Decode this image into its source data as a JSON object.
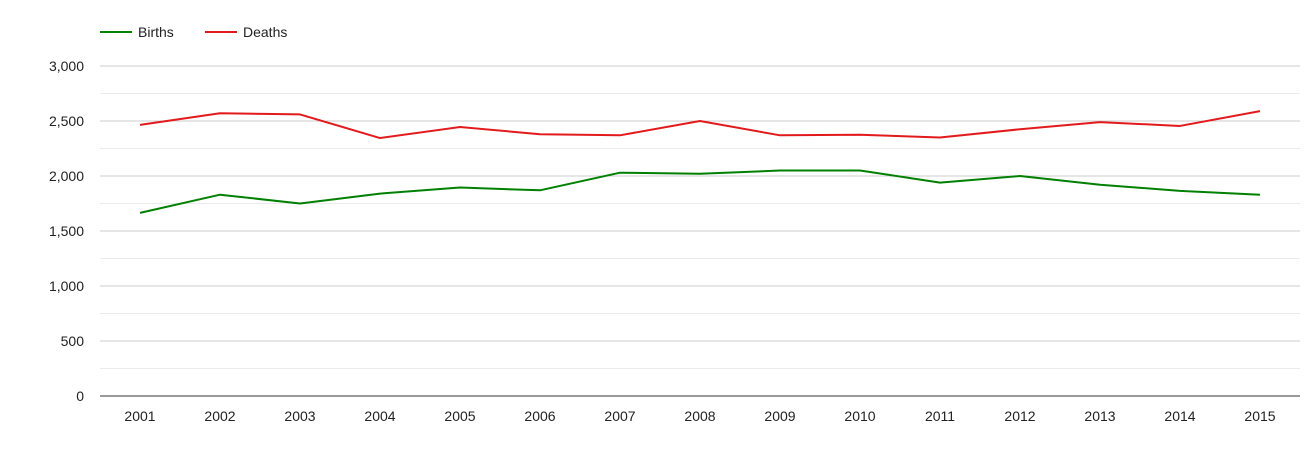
{
  "chart_data": {
    "type": "line",
    "categories": [
      "2001",
      "2002",
      "2003",
      "2004",
      "2005",
      "2006",
      "2007",
      "2008",
      "2009",
      "2010",
      "2011",
      "2012",
      "2013",
      "2014",
      "2015"
    ],
    "series": [
      {
        "name": "Births",
        "color": "#008000",
        "values": [
          1665,
          1830,
          1750,
          1840,
          1895,
          1870,
          2030,
          2020,
          2050,
          2050,
          1940,
          2000,
          1920,
          1865,
          1830
        ]
      },
      {
        "name": "Deaths",
        "color": "#e31a1c",
        "values": [
          2465,
          2570,
          2560,
          2345,
          2445,
          2380,
          2370,
          2500,
          2370,
          2375,
          2350,
          2425,
          2490,
          2455,
          2590
        ]
      }
    ],
    "ylim": [
      0,
      3000
    ],
    "yticks": [
      0,
      500,
      1000,
      1500,
      2000,
      2500,
      3000
    ],
    "ytick_labels": [
      "0",
      "500",
      "1,000",
      "1,500",
      "2,000",
      "2,500",
      "3,000"
    ],
    "grid": true,
    "minor_grid": true,
    "legend_position": "top-left"
  }
}
